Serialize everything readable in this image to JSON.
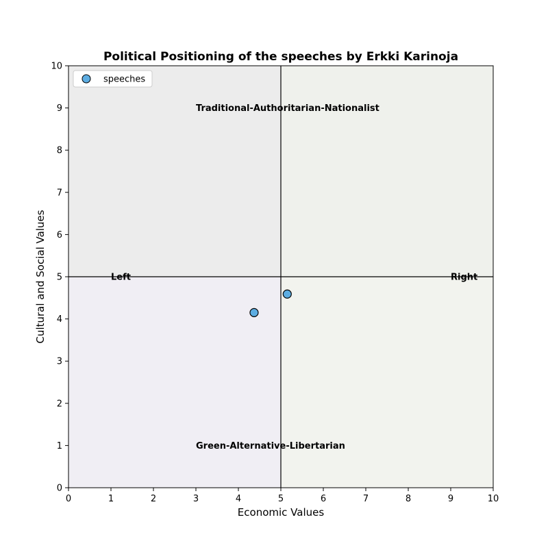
{
  "chart_data": {
    "type": "scatter",
    "title": "Political Positioning of the speeches by Erkki Karinoja",
    "xlabel": "Economic Values",
    "ylabel": "Cultural and Social Values",
    "xlim": [
      0,
      10
    ],
    "ylim": [
      0,
      10
    ],
    "xticks": [
      "0",
      "1",
      "2",
      "3",
      "4",
      "5",
      "6",
      "7",
      "8",
      "9",
      "10"
    ],
    "yticks": [
      "0",
      "1",
      "2",
      "3",
      "4",
      "5",
      "6",
      "7",
      "8",
      "9",
      "10"
    ],
    "grid": false,
    "legend_position": "top-left",
    "series": [
      {
        "name": "speeches",
        "color": "#5dade2",
        "points": [
          {
            "x": 4.37,
            "y": 4.15
          },
          {
            "x": 5.15,
            "y": 4.59
          }
        ]
      }
    ],
    "quadrant_colors": {
      "top_left": "#ececec",
      "top_right": "#eff1ec",
      "bottom_left": "#f0eef4",
      "bottom_right": "#f2f3ee"
    },
    "annotations": [
      {
        "text": "Traditional-Authoritarian-Nationalist",
        "x": 3.0,
        "y": 9.0
      },
      {
        "text": "Green-Alternative-Libertarian",
        "x": 3.0,
        "y": 1.0
      },
      {
        "text": "Left",
        "x": 1.0,
        "y": 5.0
      },
      {
        "text": "Right",
        "x": 9.0,
        "y": 5.0
      }
    ],
    "reference_lines": {
      "x": 5,
      "y": 5
    }
  }
}
